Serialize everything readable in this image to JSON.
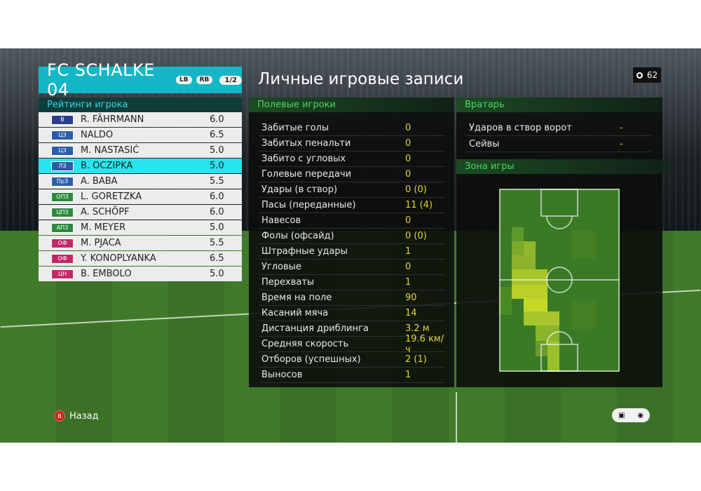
{
  "team": {
    "name": "FC SCHALKE 04",
    "lb_label": "LB",
    "rb_label": "RB",
    "page": "1/2"
  },
  "ratings_title": "Рейтинги игрока",
  "players": [
    {
      "pos": "В",
      "pos_color": "#2a3f8a",
      "name": "R. FÄHRMANN",
      "rating": "6.0",
      "selected": false
    },
    {
      "pos": "ЦЗ",
      "pos_color": "#2a5ea8",
      "name": "NALDO",
      "rating": "6.5",
      "selected": false
    },
    {
      "pos": "ЦЗ",
      "pos_color": "#2a5ea8",
      "name": "M. NASTASIĆ",
      "rating": "5.0",
      "selected": false
    },
    {
      "pos": "ЛЗ",
      "pos_color": "#2a5ea8",
      "name": "B. OCZIPKA",
      "rating": "5.0",
      "selected": true
    },
    {
      "pos": "ПрЗ",
      "pos_color": "#2a5ea8",
      "name": "A. BABA",
      "rating": "5.5",
      "selected": false
    },
    {
      "pos": "ОПЗ",
      "pos_color": "#2b8a3c",
      "name": "L. GORETZKA",
      "rating": "6.0",
      "selected": false
    },
    {
      "pos": "ЦПЗ",
      "pos_color": "#2b8a3c",
      "name": "A. SCHÖPF",
      "rating": "6.0",
      "selected": false
    },
    {
      "pos": "АПЗ",
      "pos_color": "#2b8a3c",
      "name": "M. MEYER",
      "rating": "5.0",
      "selected": false
    },
    {
      "pos": "ОФ",
      "pos_color": "#c2286a",
      "name": "M. PJACA",
      "rating": "5.5",
      "selected": false
    },
    {
      "pos": "ОФ",
      "pos_color": "#c2286a",
      "name": "Y. KONOPLYANKA",
      "rating": "6.5",
      "selected": false
    },
    {
      "pos": "ЦН",
      "pos_color": "#c2286a",
      "name": "B. EMBOLO",
      "rating": "5.0",
      "selected": false
    }
  ],
  "main_title": "Личные игровые записи",
  "timer": "62",
  "field_players": {
    "title": "Полевые игроки",
    "stats": [
      {
        "label": "Забитые голы",
        "value": "0"
      },
      {
        "label": "Забитых пенальти",
        "value": "0"
      },
      {
        "label": "Забито с угловых",
        "value": "0"
      },
      {
        "label": "Голевые передачи",
        "value": "0"
      },
      {
        "label": "Удары (в створ)",
        "value": "0 (0)"
      },
      {
        "label": "Пасы (переданные)",
        "value": "11 (4)"
      },
      {
        "label": "Навесов",
        "value": "0"
      },
      {
        "label": "Фолы (офсайд)",
        "value": "0 (0)"
      },
      {
        "label": "Штрафные удары",
        "value": "1"
      },
      {
        "label": "Угловые",
        "value": "0"
      },
      {
        "label": "Перехваты",
        "value": "1"
      },
      {
        "label": "Время на поле",
        "value": "90"
      },
      {
        "label": "Касаний мяча",
        "value": "14"
      },
      {
        "label": "Дистанция дриблинга",
        "value": "3.2 м"
      },
      {
        "label": "Средняя скорость",
        "value": "19.6 км/ч"
      },
      {
        "label": "Отборов (успешных)",
        "value": "2 (1)"
      },
      {
        "label": "Выносов",
        "value": "1"
      }
    ]
  },
  "goalkeeper": {
    "title": "Вратарь",
    "stats": [
      {
        "label": "Ударов в створ ворот",
        "value": "-"
      },
      {
        "label": "Сейвы",
        "value": "-"
      }
    ]
  },
  "zone_title": "Зона игры",
  "footer": {
    "back_button": "B",
    "back_label": "Назад"
  },
  "colors": {
    "accent": "#15b7c6",
    "selected_row": "#29e4ee",
    "section_header": "#47d862",
    "stat_value": "#e5d431"
  }
}
